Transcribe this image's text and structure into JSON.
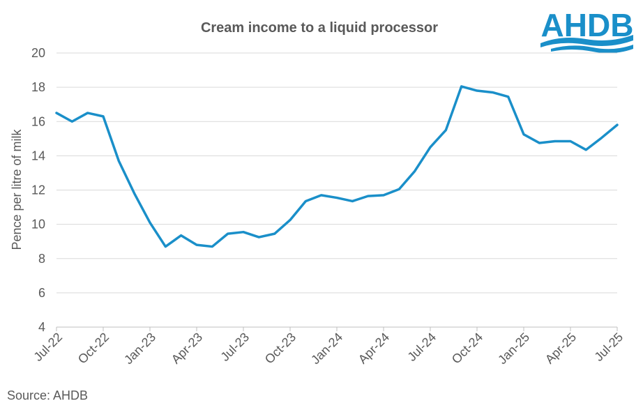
{
  "chart_data": {
    "type": "line",
    "title": "Cream income to a liquid processor",
    "ylabel": "Pence per litre of milk",
    "xlabel": "",
    "ylim": [
      4,
      20
    ],
    "yticks": [
      4,
      6,
      8,
      10,
      12,
      14,
      16,
      18,
      20
    ],
    "grid": "horizontal",
    "x": [
      "Jul-22",
      "Aug-22",
      "Sep-22",
      "Oct-22",
      "Nov-22",
      "Dec-22",
      "Jan-23",
      "Feb-23",
      "Mar-23",
      "Apr-23",
      "May-23",
      "Jun-23",
      "Jul-23",
      "Aug-23",
      "Sep-23",
      "Oct-23",
      "Nov-23",
      "Dec-23",
      "Jan-24",
      "Feb-24",
      "Mar-24",
      "Apr-24",
      "May-24",
      "Jun-24",
      "Jul-24",
      "Aug-24",
      "Sep-24",
      "Oct-24",
      "Nov-24",
      "Dec-24",
      "Jan-25",
      "Feb-25",
      "Mar-25",
      "Apr-25",
      "May-25",
      "Jun-25",
      "Jul-25"
    ],
    "xtick_labels": [
      "Jul-22",
      "Oct-22",
      "Jan-23",
      "Apr-23",
      "Jul-23",
      "Oct-23",
      "Jan-24",
      "Apr-24",
      "Jul-24",
      "Oct-24",
      "Jan-25",
      "Apr-25",
      "Jul-25"
    ],
    "series": [
      {
        "values": [
          16.5,
          16.0,
          16.5,
          16.3,
          13.7,
          11.8,
          10.1,
          8.7,
          9.35,
          8.8,
          8.7,
          9.45,
          9.55,
          9.25,
          9.45,
          10.25,
          11.35,
          11.7,
          11.55,
          11.35,
          11.65,
          11.7,
          12.05,
          13.1,
          14.5,
          15.5,
          18.05,
          17.8,
          17.7,
          17.45,
          15.25,
          14.75,
          14.85,
          14.85,
          14.35,
          15.05,
          15.8
        ],
        "color": "#1a8fc9"
      }
    ]
  },
  "source": "Source: AHDB",
  "logo": {
    "text": "AHDB",
    "color": "#1a8fc9",
    "wave_color": "#1a8fc9"
  }
}
